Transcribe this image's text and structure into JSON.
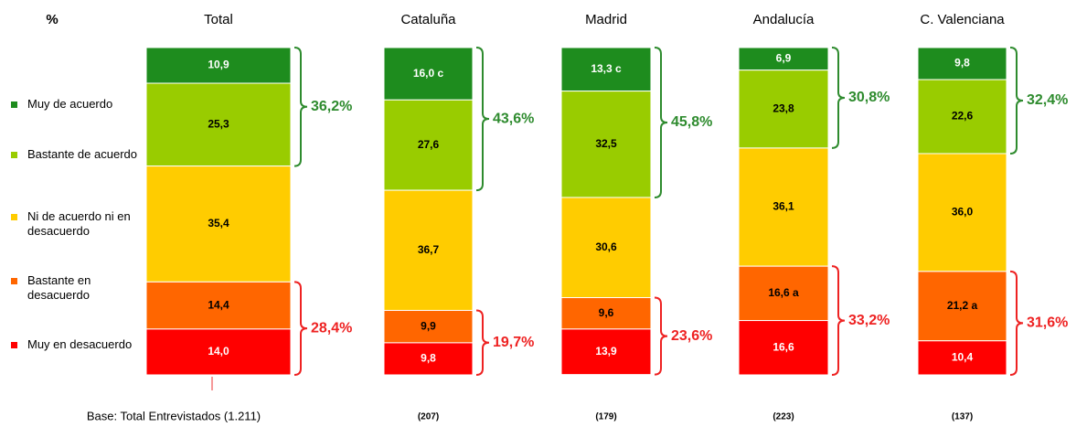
{
  "chart_data": {
    "type": "stacked_bar",
    "y_label": "%",
    "categories": [
      "Total",
      "Cataluña",
      "Madrid",
      "Andalucía",
      "C. Valenciana"
    ],
    "series": [
      {
        "name": "Muy de acuerdo",
        "color": "#1e8c1e",
        "values": [
          10.9,
          16.0,
          13.3,
          6.9,
          9.8
        ],
        "value_labels": [
          "10,9",
          "16,0 c",
          "13,3 c",
          "6,9",
          "9,8"
        ]
      },
      {
        "name": "Bastante de acuerdo",
        "color": "#99cc00",
        "values": [
          25.3,
          27.6,
          32.5,
          23.8,
          22.6
        ],
        "value_labels": [
          "25,3",
          "27,6",
          "32,5",
          "23,8",
          "22,6"
        ]
      },
      {
        "name": "Ni de acuerdo ni en desacuerdo",
        "color": "#ffcc00",
        "values": [
          35.4,
          36.7,
          30.6,
          36.1,
          36.0
        ],
        "value_labels": [
          "35,4",
          "36,7",
          "30,6",
          "36,1",
          "36,0"
        ]
      },
      {
        "name": "Bastante en desacuerdo",
        "color": "#ff6600",
        "values": [
          14.4,
          9.9,
          9.6,
          16.6,
          21.2
        ],
        "value_labels": [
          "14,4",
          "9,9",
          "9,6",
          "16,6 a",
          "21,2 a"
        ]
      },
      {
        "name": "Muy en desacuerdo",
        "color": "#ff0000",
        "values": [
          14.0,
          9.8,
          13.9,
          16.6,
          10.4
        ],
        "value_labels": [
          "14,0",
          "9,8",
          "13,9",
          "16,6",
          "10,4"
        ]
      }
    ],
    "agree_totals": {
      "color": "#2e8b2e",
      "values": [
        36.2,
        43.6,
        45.8,
        30.8,
        32.4
      ],
      "value_labels": [
        "36,2%",
        "43,6%",
        "45,8%",
        "30,8%",
        "32,4%"
      ]
    },
    "disagree_totals": {
      "color": "#ee2222",
      "values": [
        28.4,
        19.7,
        23.6,
        33.2,
        31.6
      ],
      "value_labels": [
        "28,4%",
        "19,7%",
        "23,6%",
        "33,2%",
        "31,6%"
      ]
    },
    "bases": [
      "Base: Total Entrevistados (1.211)",
      "(207)",
      "(179)",
      "(223)",
      "(137)"
    ],
    "ylim": [
      0,
      100
    ]
  }
}
